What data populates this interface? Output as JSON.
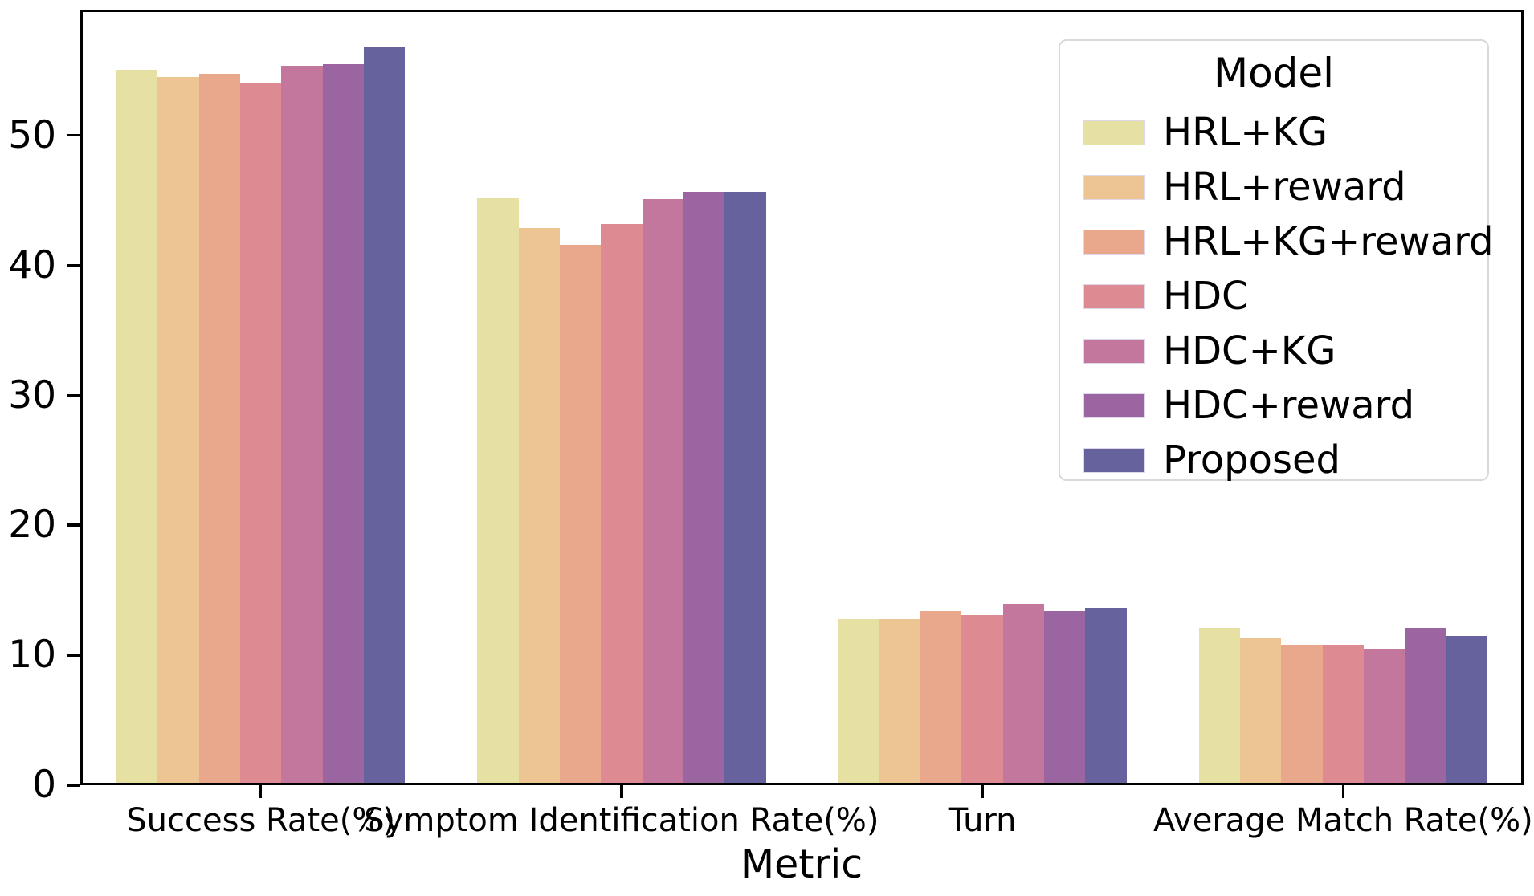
{
  "chart_data": {
    "type": "bar",
    "title": "",
    "xlabel": "Metric",
    "ylabel": "",
    "categories": [
      "Success Rate(%)",
      "Symptom Identification Rate(%)",
      "Turn",
      "Average Match Rate(%)"
    ],
    "series": [
      {
        "name": "HRL+KG",
        "color": "#e7e0a3",
        "values": [
          54.9,
          45.0,
          12.6,
          11.9
        ]
      },
      {
        "name": "HRL+reward",
        "color": "#ecc592",
        "values": [
          54.3,
          42.7,
          12.6,
          11.1
        ]
      },
      {
        "name": "HRL+KG+reward",
        "color": "#e9a78c",
        "values": [
          54.6,
          41.4,
          13.2,
          10.6
        ]
      },
      {
        "name": "HDC",
        "color": "#dd8a93",
        "values": [
          53.8,
          43.0,
          12.9,
          10.6
        ]
      },
      {
        "name": "HDC+KG",
        "color": "#c3779c",
        "values": [
          55.2,
          44.9,
          13.8,
          10.3
        ]
      },
      {
        "name": "HDC+reward",
        "color": "#9a65a0",
        "values": [
          55.3,
          45.5,
          13.2,
          11.9
        ]
      },
      {
        "name": "Proposed",
        "color": "#66629d",
        "values": [
          56.7,
          45.5,
          13.5,
          11.3
        ]
      }
    ],
    "legend_title": "Model",
    "legend_position": "upper right",
    "y_ticks": [
      0,
      10,
      20,
      30,
      40,
      50
    ],
    "ylim": [
      0,
      59.7
    ],
    "grid": false,
    "bar_group_width_fraction": 0.8,
    "axis_color": "#000000"
  }
}
